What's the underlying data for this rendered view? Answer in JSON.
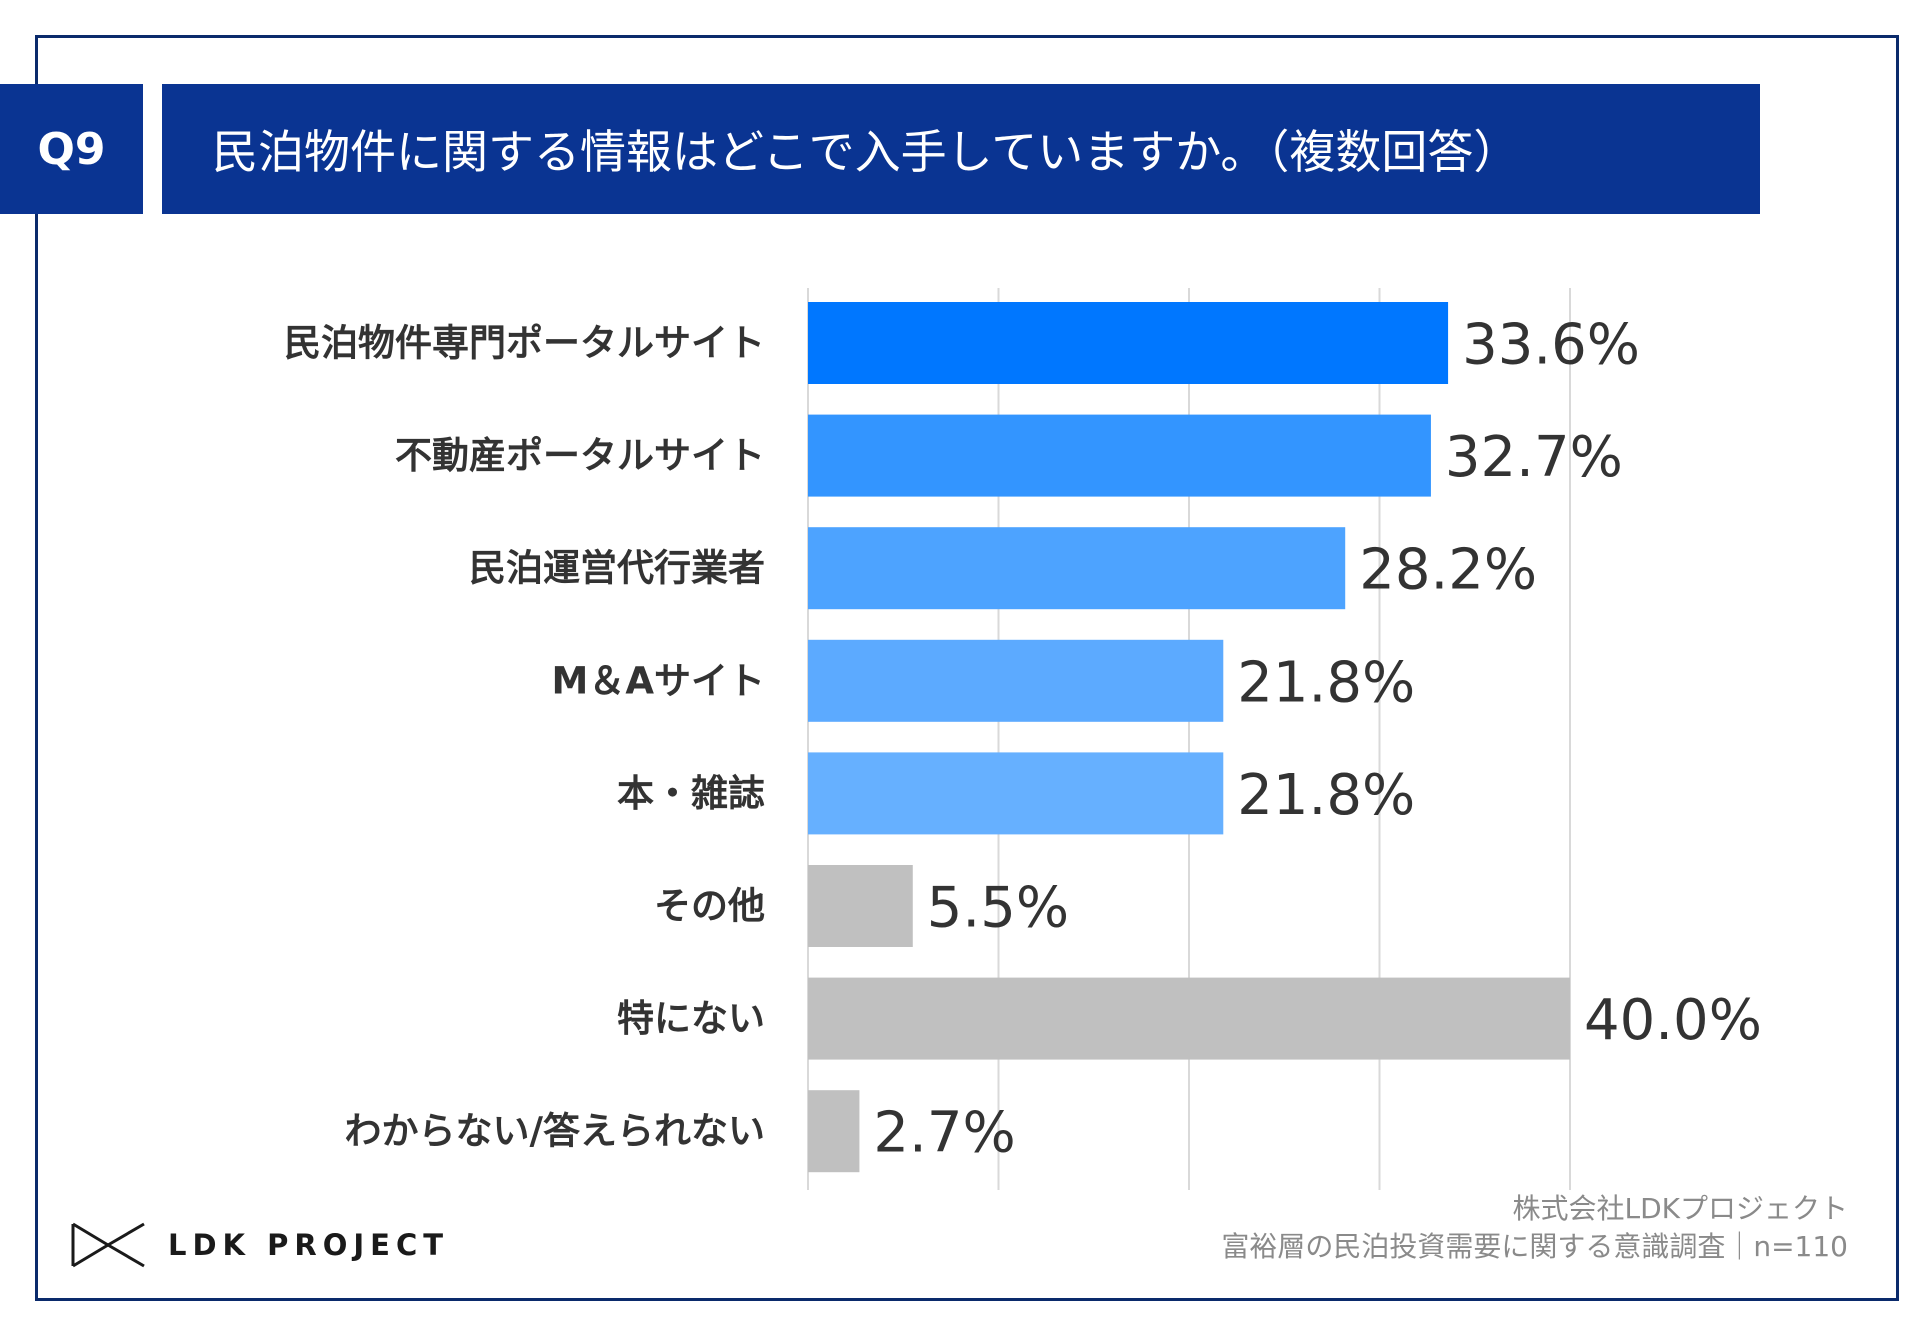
{
  "header": {
    "question_number": "Q9",
    "question_text": "民泊物件に関する情報はどこで入手していますか。（複数回答）"
  },
  "colors": {
    "navy": "#0a3492",
    "frame": "#0a2a6b",
    "gridline": "#d9d9d9",
    "gray_bar": "#c0c0c0"
  },
  "chart_data": {
    "type": "bar",
    "orientation": "horizontal",
    "title": "民泊物件に関する情報はどこで入手していますか。（複数回答）",
    "categories": [
      "民泊物件専門ポータルサイト",
      "不動産ポータルサイト",
      "民泊運営代行業者",
      "M＆Aサイト",
      "本・雑誌",
      "その他",
      "特にない",
      "わからない/答えられない"
    ],
    "values": [
      33.6,
      32.7,
      28.2,
      21.8,
      21.8,
      5.5,
      40.0,
      2.7
    ],
    "value_labels": [
      "33.6%",
      "32.7%",
      "28.2%",
      "21.8%",
      "21.8%",
      "5.5%",
      "40.0%",
      "2.7%"
    ],
    "bar_colors": [
      "#0077ff",
      "#3395ff",
      "#4da3ff",
      "#5caaff",
      "#66b0ff",
      "#c0c0c0",
      "#c0c0c0",
      "#c0c0c0"
    ],
    "xlim": [
      0,
      40
    ],
    "grid": true,
    "legend": "none",
    "xlabel": "",
    "ylabel": ""
  },
  "footer": {
    "logo_text": "LDK PROJECT",
    "source_company": "株式会社LDKプロジェクト",
    "source_survey": "富裕層の民泊投資需要に関する意識調査｜n=110"
  }
}
